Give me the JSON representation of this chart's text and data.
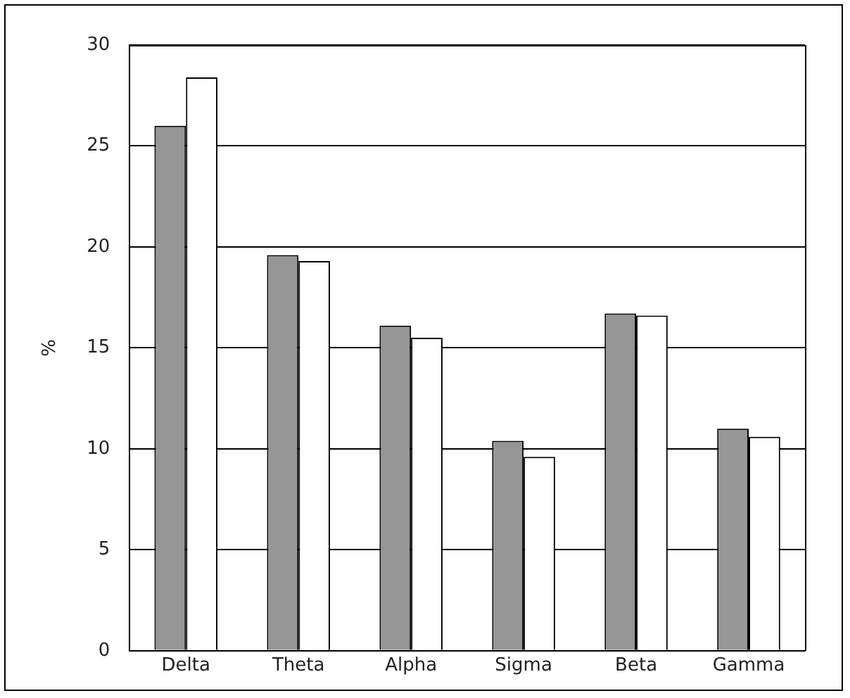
{
  "chart_data": {
    "type": "bar",
    "ylabel": "%",
    "categories": [
      "Delta",
      "Theta",
      "Alpha",
      "Sigma",
      "Beta",
      "Gamma"
    ],
    "series": [
      {
        "color": "#969696",
        "values": [
          26.0,
          19.6,
          16.1,
          10.4,
          16.7,
          11.0
        ]
      },
      {
        "color": "#ffffff",
        "values": [
          28.4,
          19.3,
          15.5,
          9.6,
          16.6,
          10.6
        ]
      }
    ],
    "ylim": [
      0,
      30
    ],
    "yticks": [
      0,
      5,
      10,
      15,
      20,
      25,
      30
    ],
    "grid": "y",
    "legend": false
  }
}
